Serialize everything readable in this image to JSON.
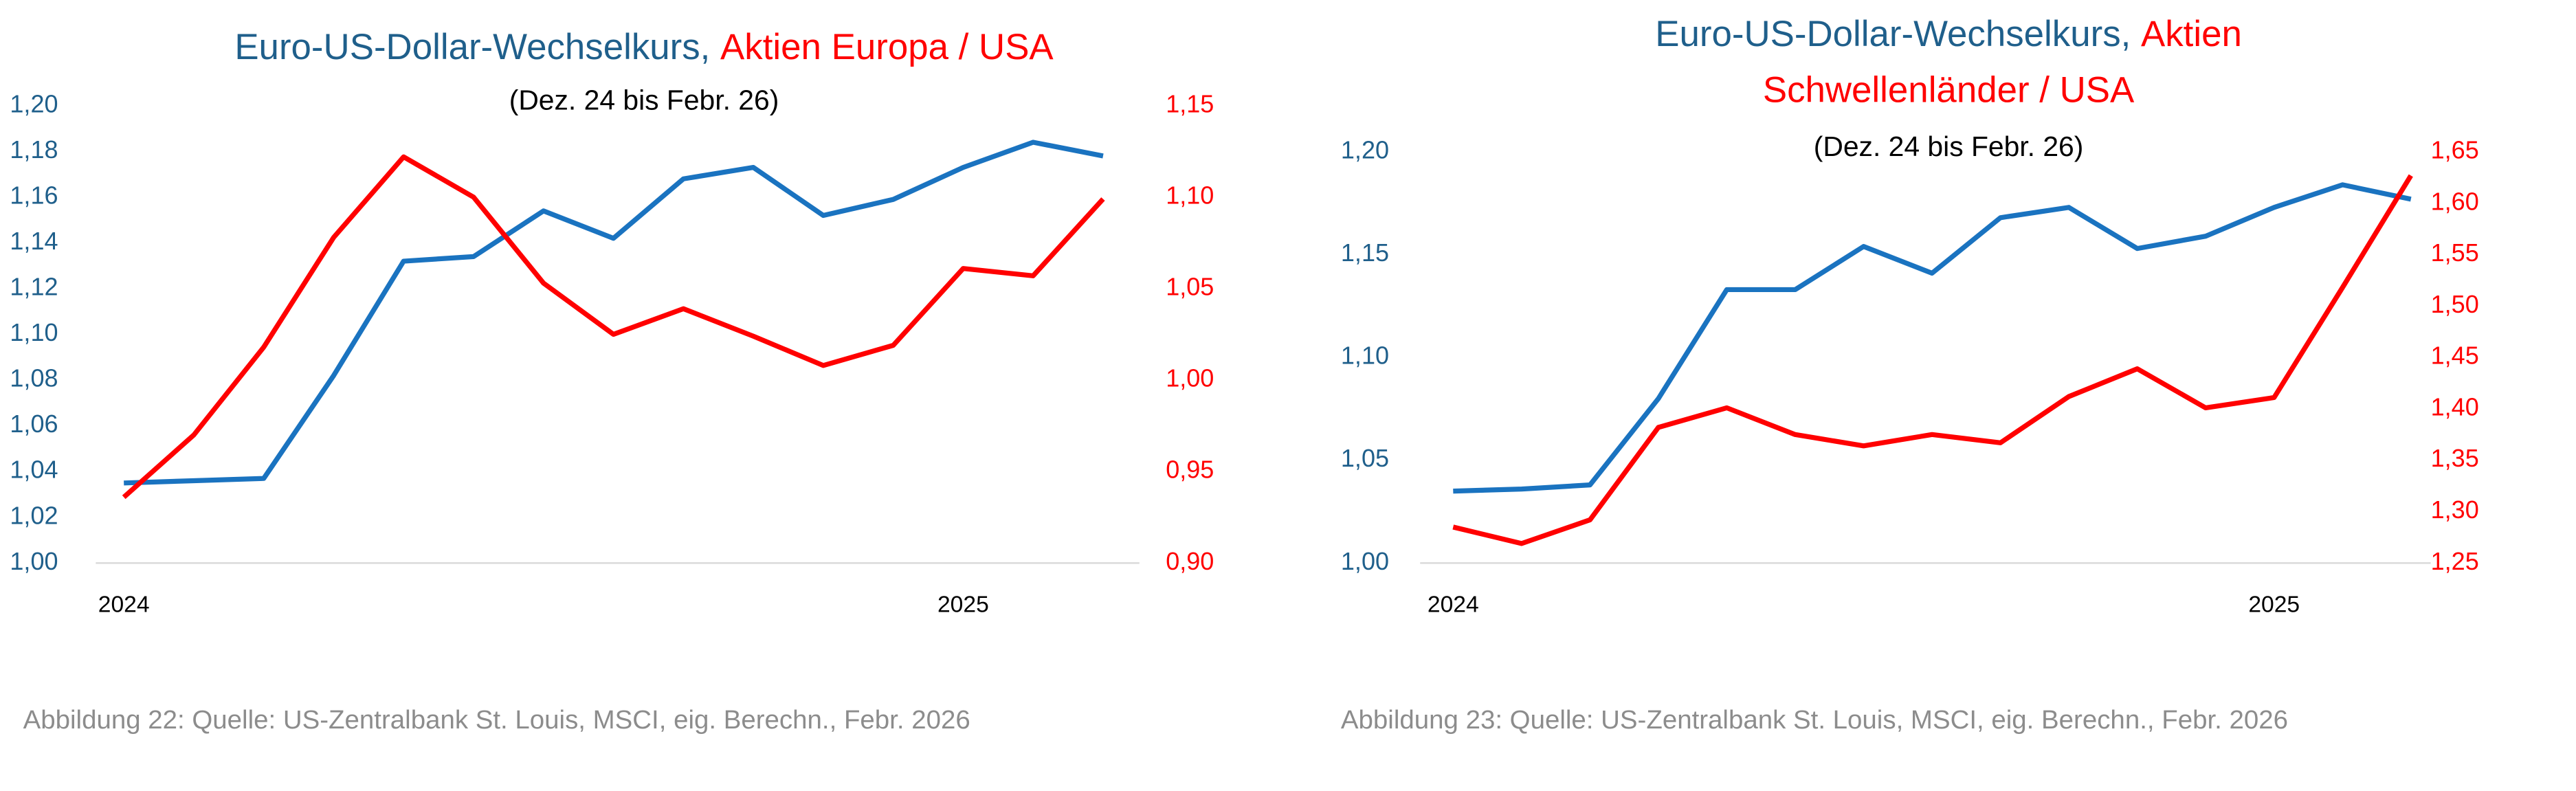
{
  "chart_data": [
    {
      "type": "line",
      "title_lines": [
        [
          {
            "text": "Euro-US-Dollar-Wechselkurs,",
            "color": "#1f5f8b"
          },
          {
            "text": "Aktien Europa / USA",
            "color": "#ff0000"
          }
        ]
      ],
      "subtitle": "(Dez. 24 bis Febr. 26)",
      "caption": "Abbildung 22: Quelle: US-Zentralbank St. Louis, MSCI, eig. Berechn., Febr. 2026",
      "categories": [
        "2024",
        null,
        null,
        null,
        null,
        null,
        null,
        null,
        null,
        null,
        null,
        null,
        "2025",
        null,
        null
      ],
      "series": [
        {
          "color": "#1a73c0",
          "axis": "y",
          "values": [
            1.035,
            1.036,
            1.037,
            1.082,
            1.132,
            1.134,
            1.154,
            1.142,
            1.168,
            1.173,
            1.152,
            1.159,
            1.173,
            1.184,
            1.178
          ]
        },
        {
          "color": "#ff0000",
          "axis": "y2",
          "values": [
            0.936,
            0.97,
            1.018,
            1.078,
            1.122,
            1.1,
            1.053,
            1.025,
            1.039,
            1.024,
            1.008,
            1.019,
            1.061,
            1.057,
            1.099
          ]
        }
      ],
      "ylim": [
        1.0,
        1.2
      ],
      "yticks": [
        {
          "value": 1.0,
          "label": "1,00"
        },
        {
          "value": 1.02,
          "label": "1,02"
        },
        {
          "value": 1.04,
          "label": "1,04"
        },
        {
          "value": 1.06,
          "label": "1,06"
        },
        {
          "value": 1.08,
          "label": "1,08"
        },
        {
          "value": 1.1,
          "label": "1,10"
        },
        {
          "value": 1.12,
          "label": "1,12"
        },
        {
          "value": 1.14,
          "label": "1,14"
        },
        {
          "value": 1.16,
          "label": "1,16"
        },
        {
          "value": 1.18,
          "label": "1,18"
        },
        {
          "value": 1.2,
          "label": "1,20"
        }
      ],
      "y2lim": [
        0.9,
        1.15
      ],
      "y2ticks": [
        {
          "value": 0.9,
          "label": "0,90"
        },
        {
          "value": 0.95,
          "label": "0,95"
        },
        {
          "value": 1.0,
          "label": "1,00"
        },
        {
          "value": 1.05,
          "label": "1,05"
        },
        {
          "value": 1.1,
          "label": "1,10"
        },
        {
          "value": 1.15,
          "label": "1,15"
        }
      ],
      "grid": false
    },
    {
      "type": "line",
      "title_lines": [
        [
          {
            "text": "Euro-US-Dollar-Wechselkurs,",
            "color": "#1f5f8b"
          },
          {
            "text": "Aktien",
            "color": "#ff0000"
          }
        ],
        [
          {
            "text": "Schwellenländer / USA",
            "color": "#ff0000"
          }
        ]
      ],
      "subtitle": "(Dez. 24 bis Febr. 26)",
      "caption": "Abbildung 23: Quelle: US-Zentralbank St. Louis, MSCI, eig. Berechn., Febr. 2026",
      "categories": [
        "2024",
        null,
        null,
        null,
        null,
        null,
        null,
        null,
        null,
        null,
        null,
        null,
        "2025",
        null,
        null
      ],
      "series": [
        {
          "color": "#1a73c0",
          "axis": "y",
          "values": [
            1.035,
            1.036,
            1.038,
            1.08,
            1.133,
            1.133,
            1.154,
            1.141,
            1.168,
            1.173,
            1.153,
            1.159,
            1.173,
            1.184,
            1.177
          ]
        },
        {
          "color": "#ff0000",
          "axis": "y2",
          "values": [
            1.285,
            1.269,
            1.292,
            1.382,
            1.401,
            1.375,
            1.364,
            1.375,
            1.367,
            1.412,
            1.439,
            1.401,
            1.411,
            1.518,
            1.627
          ]
        }
      ],
      "ylim": [
        1.0,
        1.2
      ],
      "yticks": [
        {
          "value": 1.0,
          "label": "1,00"
        },
        {
          "value": 1.05,
          "label": "1,05"
        },
        {
          "value": 1.1,
          "label": "1,10"
        },
        {
          "value": 1.15,
          "label": "1,15"
        },
        {
          "value": 1.2,
          "label": "1,20"
        }
      ],
      "y2lim": [
        1.25,
        1.65
      ],
      "y2ticks": [
        {
          "value": 1.25,
          "label": "1,25"
        },
        {
          "value": 1.3,
          "label": "1,30"
        },
        {
          "value": 1.35,
          "label": "1,35"
        },
        {
          "value": 1.4,
          "label": "1,40"
        },
        {
          "value": 1.45,
          "label": "1,45"
        },
        {
          "value": 1.5,
          "label": "1,50"
        },
        {
          "value": 1.55,
          "label": "1,55"
        },
        {
          "value": 1.6,
          "label": "1,60"
        },
        {
          "value": 1.65,
          "label": "1,65"
        }
      ],
      "grid": false
    }
  ]
}
